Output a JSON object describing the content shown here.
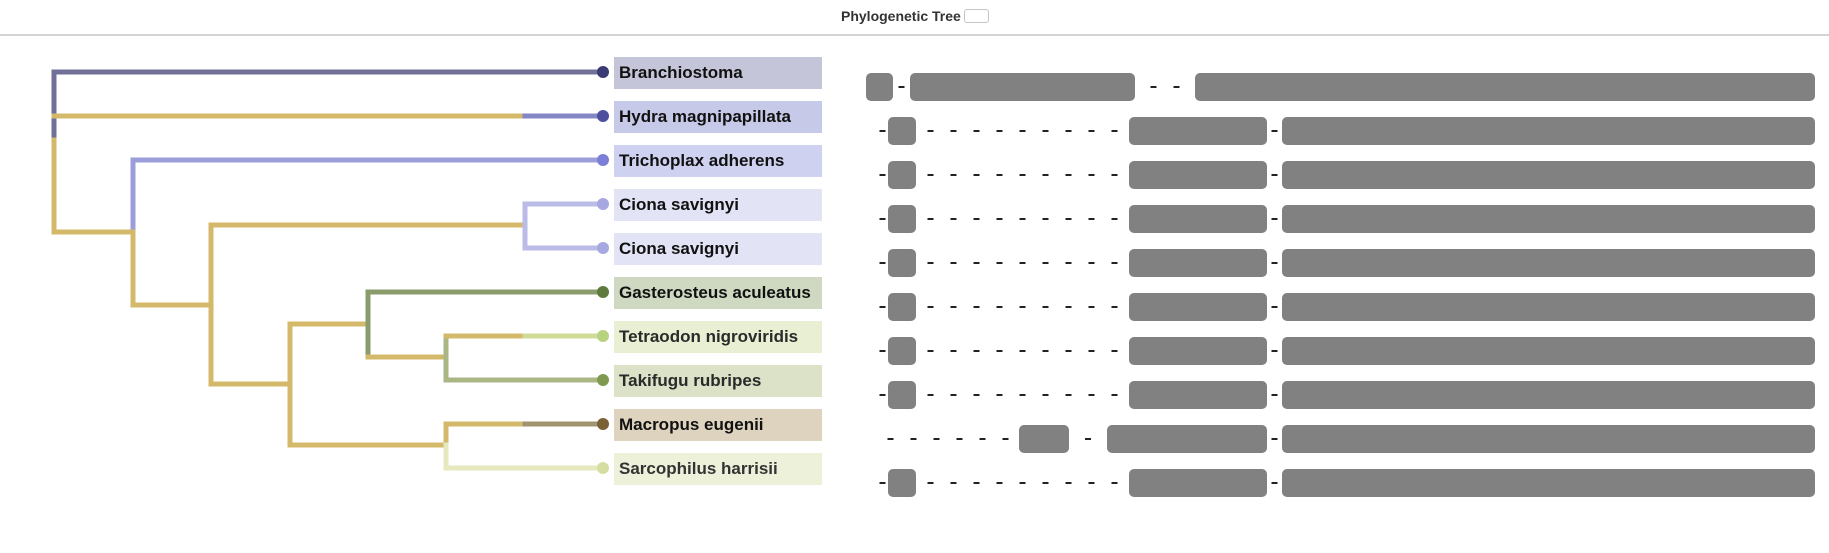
{
  "header": {
    "title": "Phylogenetic Tree"
  },
  "taxa": [
    {
      "name": "Branchiostoma",
      "label_bg": "#c5c5d9",
      "dot": "#3b3b73",
      "text": "#111111"
    },
    {
      "name": "Hydra magnipapillata",
      "label_bg": "#c7c9e8",
      "dot": "#4d4f9e",
      "text": "#111111"
    },
    {
      "name": "Trichoplax adherens",
      "label_bg": "#cfd1f0",
      "dot": "#7c7fd6",
      "text": "#111111"
    },
    {
      "name": "Ciona savignyi",
      "label_bg": "#e2e3f5",
      "dot": "#a7a8e0",
      "text": "#111111"
    },
    {
      "name": "Ciona savignyi",
      "label_bg": "#e2e3f5",
      "dot": "#a7a8e0",
      "text": "#111111"
    },
    {
      "name": "Gasterosteus aculeatus",
      "label_bg": "#cfd9c2",
      "dot": "#5f7a3d",
      "text": "#111111"
    },
    {
      "name": "Tetraodon nigroviridis",
      "label_bg": "#e8efd2",
      "dot": "#b9d27f",
      "text": "#2a2a2a"
    },
    {
      "name": "Takifugu rubripes",
      "label_bg": "#dbe2c8",
      "dot": "#7f9a4f",
      "text": "#2a2a2a"
    },
    {
      "name": "Macropus eugenii",
      "label_bg": "#ddd3bf",
      "dot": "#7a6236",
      "text": "#111111"
    },
    {
      "name": "Sarcophilus harrisii",
      "label_bg": "#eef1da",
      "dot": "#d6dda3",
      "text": "#333333"
    }
  ],
  "alignment": {
    "color": "#818181",
    "rows": [
      [
        [
          866,
          893
        ],
        [
          910,
          1135
        ],
        [
          1195,
          1815
        ]
      ],
      [
        [
          888,
          916
        ],
        [
          1129,
          1267
        ],
        [
          1282,
          1815
        ]
      ],
      [
        [
          888,
          916
        ],
        [
          1129,
          1267
        ],
        [
          1282,
          1815
        ]
      ],
      [
        [
          888,
          916
        ],
        [
          1129,
          1267
        ],
        [
          1282,
          1815
        ]
      ],
      [
        [
          888,
          916
        ],
        [
          1129,
          1267
        ],
        [
          1282,
          1815
        ]
      ],
      [
        [
          888,
          916
        ],
        [
          1129,
          1267
        ],
        [
          1282,
          1815
        ]
      ],
      [
        [
          888,
          916
        ],
        [
          1129,
          1267
        ],
        [
          1282,
          1815
        ]
      ],
      [
        [
          888,
          916
        ],
        [
          1129,
          1267
        ],
        [
          1282,
          1815
        ]
      ],
      [
        [
          1019,
          1069
        ],
        [
          1107,
          1267
        ],
        [
          1282,
          1815
        ]
      ],
      [
        [
          888,
          916
        ],
        [
          1129,
          1267
        ],
        [
          1282,
          1815
        ]
      ]
    ]
  },
  "tree": {
    "colors": {
      "gold": "#d4b96b",
      "navy": "#707099",
      "periwinkle": "#9c9edb",
      "lavender": "#babbe6",
      "olive": "#8a9c6c",
      "sage": "#aab785",
      "lime": "#cfdc98",
      "brown": "#a39470",
      "pale": "#e5e9bd"
    }
  }
}
